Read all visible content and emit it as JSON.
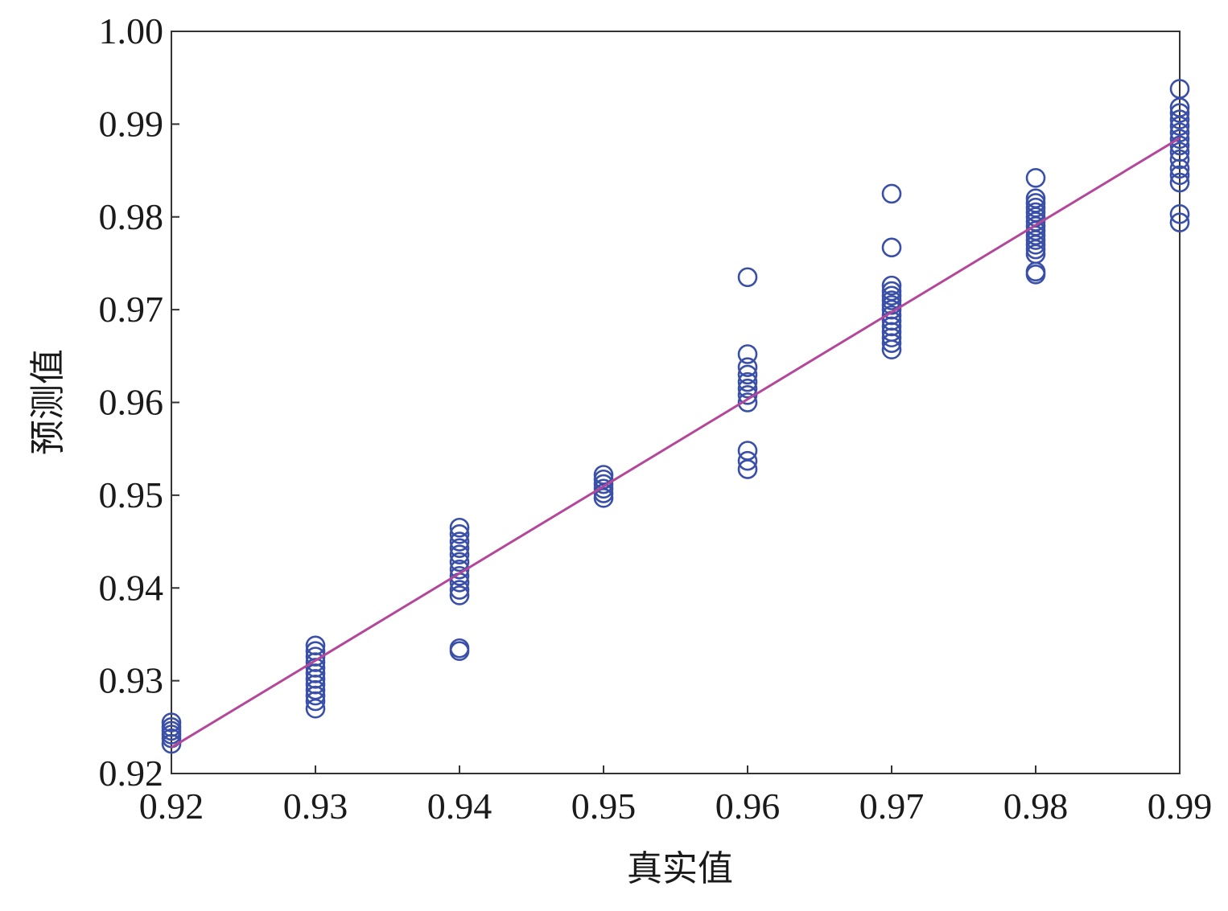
{
  "chart_data": {
    "type": "scatter",
    "title": "",
    "xlabel": "真实值",
    "ylabel": "预测值",
    "xlim": [
      0.92,
      0.99
    ],
    "ylim": [
      0.92,
      1.0
    ],
    "x_ticks": [
      "0.92",
      "0.93",
      "0.94",
      "0.95",
      "0.96",
      "0.97",
      "0.98",
      "0.99"
    ],
    "y_ticks": [
      "0.92",
      "0.93",
      "0.94",
      "0.95",
      "0.96",
      "0.97",
      "0.98",
      "0.99",
      "1.00"
    ],
    "grid": false,
    "colors": {
      "points": "#3a4fa8",
      "fit_line": "#b3489a",
      "axes": "#333333"
    },
    "series": [
      {
        "marker": "open-circle",
        "points": [
          [
            0.92,
            0.9255
          ],
          [
            0.92,
            0.925
          ],
          [
            0.92,
            0.9246
          ],
          [
            0.92,
            0.9242
          ],
          [
            0.92,
            0.9238
          ],
          [
            0.92,
            0.9232
          ],
          [
            0.93,
            0.9338
          ],
          [
            0.93,
            0.9332
          ],
          [
            0.93,
            0.9326
          ],
          [
            0.93,
            0.932
          ],
          [
            0.93,
            0.9314
          ],
          [
            0.93,
            0.9308
          ],
          [
            0.93,
            0.9302
          ],
          [
            0.93,
            0.9296
          ],
          [
            0.93,
            0.929
          ],
          [
            0.93,
            0.9284
          ],
          [
            0.93,
            0.9278
          ],
          [
            0.93,
            0.927
          ],
          [
            0.94,
            0.9465
          ],
          [
            0.94,
            0.9458
          ],
          [
            0.94,
            0.945
          ],
          [
            0.94,
            0.9443
          ],
          [
            0.94,
            0.9436
          ],
          [
            0.94,
            0.9428
          ],
          [
            0.94,
            0.942
          ],
          [
            0.94,
            0.9413
          ],
          [
            0.94,
            0.9406
          ],
          [
            0.94,
            0.9398
          ],
          [
            0.94,
            0.9392
          ],
          [
            0.94,
            0.9335
          ],
          [
            0.94,
            0.9332
          ],
          [
            0.95,
            0.9522
          ],
          [
            0.95,
            0.9517
          ],
          [
            0.95,
            0.9512
          ],
          [
            0.95,
            0.9507
          ],
          [
            0.95,
            0.9502
          ],
          [
            0.95,
            0.9497
          ],
          [
            0.96,
            0.9735
          ],
          [
            0.96,
            0.9652
          ],
          [
            0.96,
            0.9638
          ],
          [
            0.96,
            0.963
          ],
          [
            0.96,
            0.9622
          ],
          [
            0.96,
            0.9615
          ],
          [
            0.96,
            0.9608
          ],
          [
            0.96,
            0.96
          ],
          [
            0.96,
            0.9548
          ],
          [
            0.96,
            0.9537
          ],
          [
            0.96,
            0.9528
          ],
          [
            0.97,
            0.9825
          ],
          [
            0.97,
            0.9767
          ],
          [
            0.97,
            0.9726
          ],
          [
            0.97,
            0.972
          ],
          [
            0.97,
            0.9715
          ],
          [
            0.97,
            0.971
          ],
          [
            0.97,
            0.9705
          ],
          [
            0.97,
            0.97
          ],
          [
            0.97,
            0.9694
          ],
          [
            0.97,
            0.9688
          ],
          [
            0.97,
            0.9682
          ],
          [
            0.97,
            0.9676
          ],
          [
            0.97,
            0.967
          ],
          [
            0.97,
            0.9664
          ],
          [
            0.97,
            0.9657
          ],
          [
            0.98,
            0.9842
          ],
          [
            0.98,
            0.982
          ],
          [
            0.98,
            0.9815
          ],
          [
            0.98,
            0.981
          ],
          [
            0.98,
            0.9805
          ],
          [
            0.98,
            0.98
          ],
          [
            0.98,
            0.9795
          ],
          [
            0.98,
            0.979
          ],
          [
            0.98,
            0.9785
          ],
          [
            0.98,
            0.978
          ],
          [
            0.98,
            0.9775
          ],
          [
            0.98,
            0.977
          ],
          [
            0.98,
            0.9765
          ],
          [
            0.98,
            0.976
          ],
          [
            0.98,
            0.9741
          ],
          [
            0.98,
            0.9738
          ],
          [
            0.99,
            0.9938
          ],
          [
            0.99,
            0.9918
          ],
          [
            0.99,
            0.9912
          ],
          [
            0.99,
            0.9905
          ],
          [
            0.99,
            0.9898
          ],
          [
            0.99,
            0.9891
          ],
          [
            0.99,
            0.9884
          ],
          [
            0.99,
            0.9877
          ],
          [
            0.99,
            0.987
          ],
          [
            0.99,
            0.9862
          ],
          [
            0.99,
            0.9852
          ],
          [
            0.99,
            0.9845
          ],
          [
            0.99,
            0.9837
          ],
          [
            0.99,
            0.9803
          ],
          [
            0.99,
            0.9794
          ]
        ]
      }
    ],
    "fit_line": {
      "from": [
        0.92,
        0.9228
      ],
      "to": [
        0.99,
        0.9885
      ]
    }
  }
}
